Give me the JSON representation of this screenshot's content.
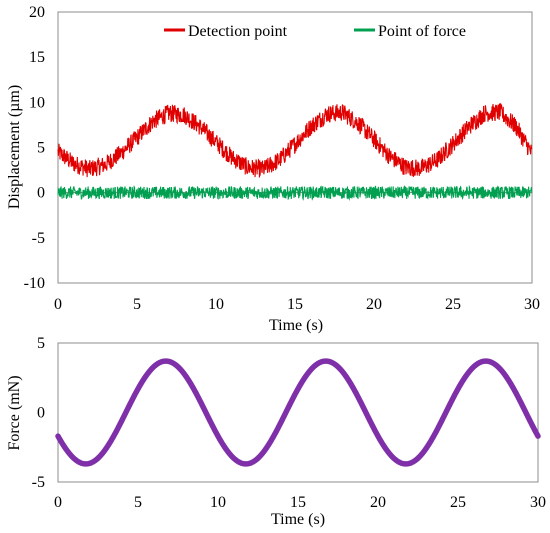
{
  "chart_data": [
    {
      "type": "line",
      "xlabel": "Time (s)",
      "ylabel": "Displacement (µm)",
      "xlim": [
        0,
        30
      ],
      "ylim": [
        -10,
        20
      ],
      "xticks": [
        "0",
        "5",
        "10",
        "15",
        "20",
        "25",
        "30"
      ],
      "yticks": [
        "20",
        "15",
        "10",
        "5",
        "0",
        "-5",
        "-10"
      ],
      "grid": false,
      "legend_position": "top",
      "series": [
        {
          "name": "Detection point",
          "color": "#e00000",
          "noise_band": 1.0,
          "x": [
            0,
            1,
            2,
            3,
            4,
            5,
            6,
            7,
            8,
            9,
            10,
            11,
            12,
            13,
            14,
            15,
            16,
            17,
            18,
            19,
            20,
            21,
            22,
            23,
            24,
            25,
            26,
            27,
            28,
            29,
            30
          ],
          "values": [
            4.5,
            3.2,
            2.6,
            3.1,
            4.4,
            6.1,
            7.9,
            8.8,
            8.6,
            7.3,
            5.6,
            3.9,
            2.8,
            2.6,
            3.6,
            5.4,
            7.3,
            8.7,
            8.9,
            7.7,
            5.9,
            4.0,
            2.8,
            2.7,
            3.6,
            5.4,
            7.3,
            8.8,
            8.9,
            7.3,
            4.3
          ]
        },
        {
          "name": "Point of force",
          "color": "#00a050",
          "noise_band": 0.7,
          "x": [
            0,
            30
          ],
          "values": [
            0,
            0
          ]
        }
      ]
    },
    {
      "type": "line",
      "xlabel": "Time (s)",
      "ylabel": "Force (mN)",
      "xlim": [
        0,
        30
      ],
      "ylim": [
        -5,
        5
      ],
      "xticks": [
        "0",
        "5",
        "10",
        "15",
        "20",
        "25",
        "30"
      ],
      "yticks": [
        "5",
        "0",
        "-5"
      ],
      "grid": false,
      "series": [
        {
          "color": "#7f30a8",
          "amplitude": 3.7,
          "period": 10,
          "x": [
            0,
            1,
            2,
            3,
            4,
            5,
            6,
            7,
            8,
            9,
            10,
            11,
            12,
            13,
            14,
            15,
            16,
            17,
            18,
            19,
            20,
            21,
            22,
            23,
            24,
            25,
            26,
            27,
            28,
            29,
            30
          ],
          "values": [
            -1.7,
            -3.3,
            -3.6,
            -2.5,
            -0.4,
            1.8,
            3.4,
            3.7,
            2.7,
            0.8,
            -1.4,
            -3.2,
            -3.6,
            -2.8,
            -0.9,
            1.3,
            3.1,
            3.7,
            3.0,
            1.2,
            -1.0,
            -2.9,
            -3.7,
            -3.1,
            -1.2,
            0.9,
            2.8,
            3.7,
            3.2,
            1.5,
            -1.7
          ]
        }
      ]
    }
  ]
}
